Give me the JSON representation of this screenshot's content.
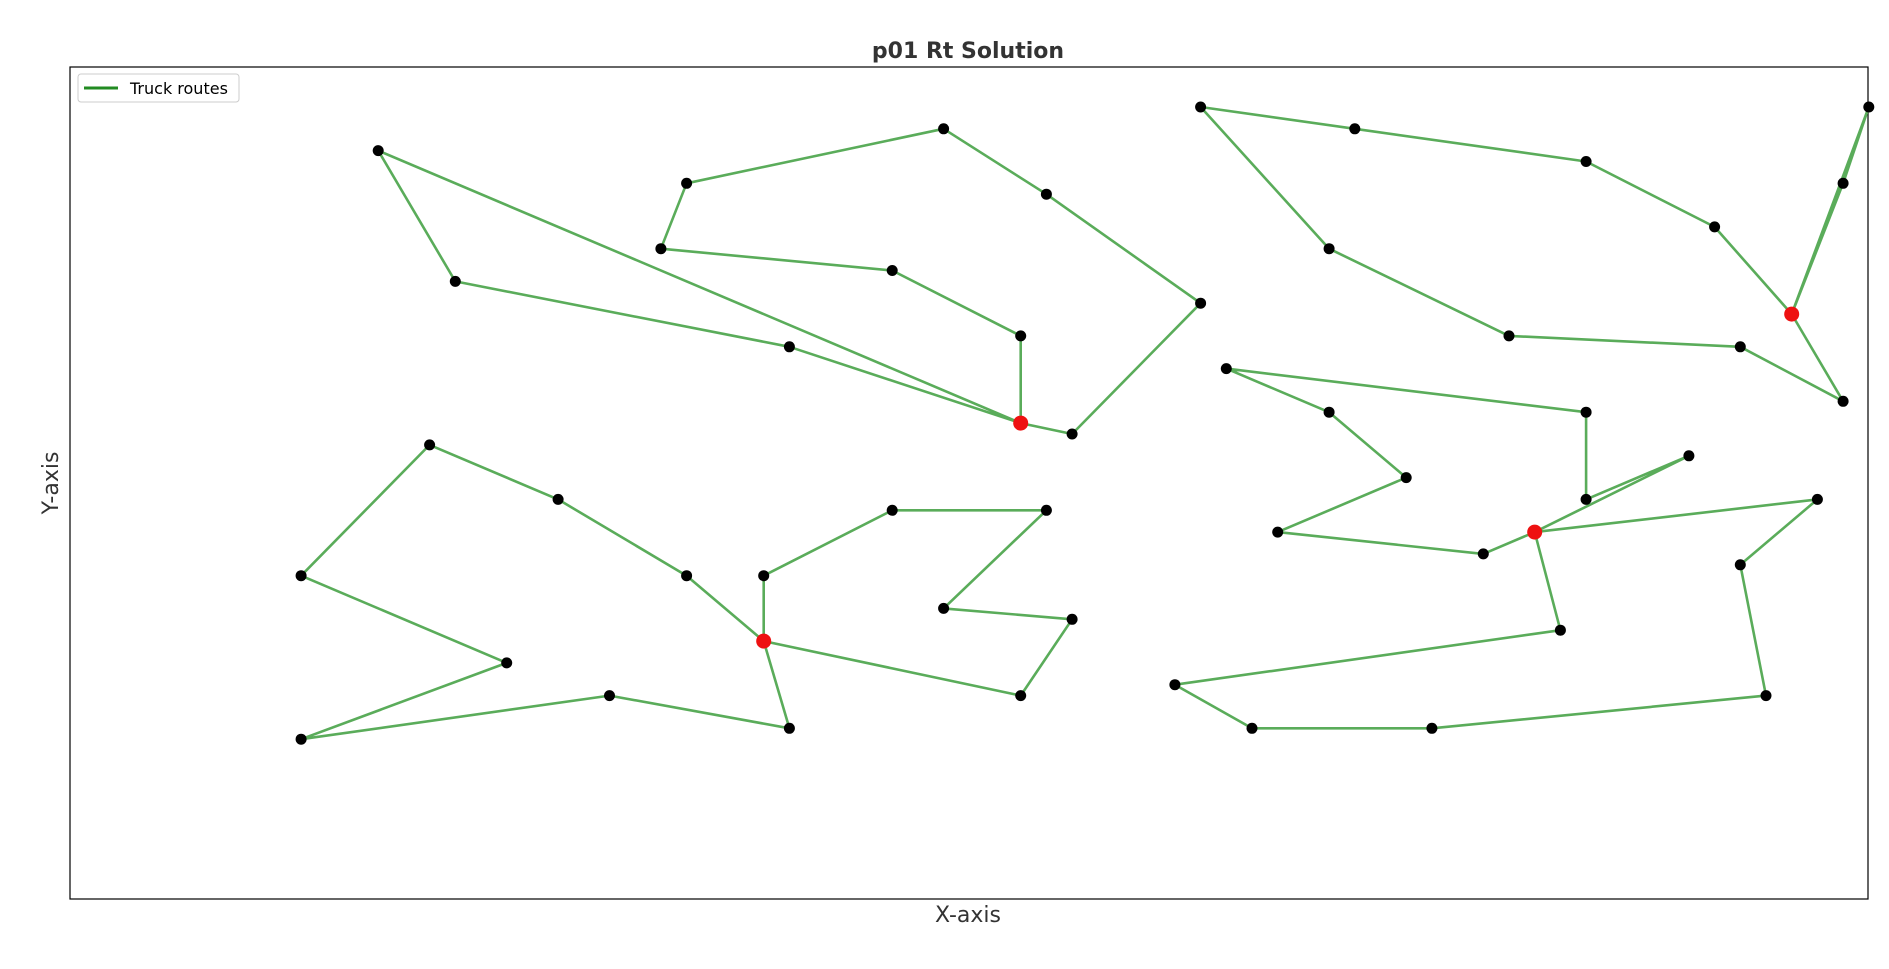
{
  "chart_data": {
    "type": "line",
    "title": "p01 Rt Solution",
    "xlabel": "X-axis",
    "ylabel": "Y-axis",
    "xlim": [
      0,
      70
    ],
    "ylim": [
      0,
      76
    ],
    "grid": false,
    "show_ticks": false,
    "legend": {
      "placement": "top-left",
      "entries": [
        "Truck routes"
      ]
    },
    "colors": {
      "route": "#5aac5a",
      "route_legend": "#228b22",
      "customer": "#000000",
      "depot": "#ee1111"
    },
    "depots": [
      {
        "x": 31,
        "y": 41
      },
      {
        "x": 21,
        "y": 21
      },
      {
        "x": 51,
        "y": 31
      },
      {
        "x": 61,
        "y": 51
      }
    ],
    "routes": [
      [
        [
          31,
          41
        ],
        [
          6,
          66
        ],
        [
          9,
          54
        ],
        [
          22,
          48
        ],
        [
          31,
          41
        ]
      ],
      [
        [
          31,
          41
        ],
        [
          31,
          49
        ],
        [
          26,
          55
        ],
        [
          17,
          57
        ],
        [
          18,
          63
        ],
        [
          28,
          68
        ],
        [
          32,
          62
        ],
        [
          38,
          52
        ],
        [
          33,
          40
        ],
        [
          31,
          41
        ]
      ],
      [
        [
          21,
          21
        ],
        [
          18,
          27
        ],
        [
          13,
          34
        ],
        [
          8,
          39
        ],
        [
          3,
          27
        ],
        [
          11,
          19
        ],
        [
          3,
          12
        ],
        [
          15,
          16
        ],
        [
          22,
          13
        ],
        [
          21,
          21
        ]
      ],
      [
        [
          21,
          21
        ],
        [
          21,
          27
        ],
        [
          26,
          33
        ],
        [
          32,
          33
        ],
        [
          28,
          24
        ],
        [
          33,
          23
        ],
        [
          31,
          16
        ],
        [
          21,
          21
        ]
      ],
      [
        [
          51,
          31
        ],
        [
          49,
          29
        ],
        [
          41,
          31
        ],
        [
          46,
          36
        ],
        [
          43,
          42
        ],
        [
          39,
          46
        ],
        [
          53,
          42
        ],
        [
          53,
          34
        ],
        [
          57,
          38
        ],
        [
          51,
          31
        ]
      ],
      [
        [
          51,
          31
        ],
        [
          62,
          34
        ],
        [
          59,
          28
        ],
        [
          60,
          16
        ],
        [
          47,
          13
        ],
        [
          40,
          13
        ],
        [
          37,
          17
        ],
        [
          52,
          22
        ],
        [
          51,
          31
        ]
      ],
      [
        [
          61,
          51
        ],
        [
          63,
          43
        ],
        [
          59,
          48
        ],
        [
          50,
          49
        ],
        [
          43,
          57
        ],
        [
          38,
          70
        ],
        [
          44,
          68
        ],
        [
          53,
          65
        ],
        [
          58,
          59
        ],
        [
          61,
          51
        ]
      ],
      [
        [
          61,
          51
        ],
        [
          63,
          63
        ],
        [
          64,
          70
        ],
        [
          61,
          51
        ]
      ]
    ]
  }
}
